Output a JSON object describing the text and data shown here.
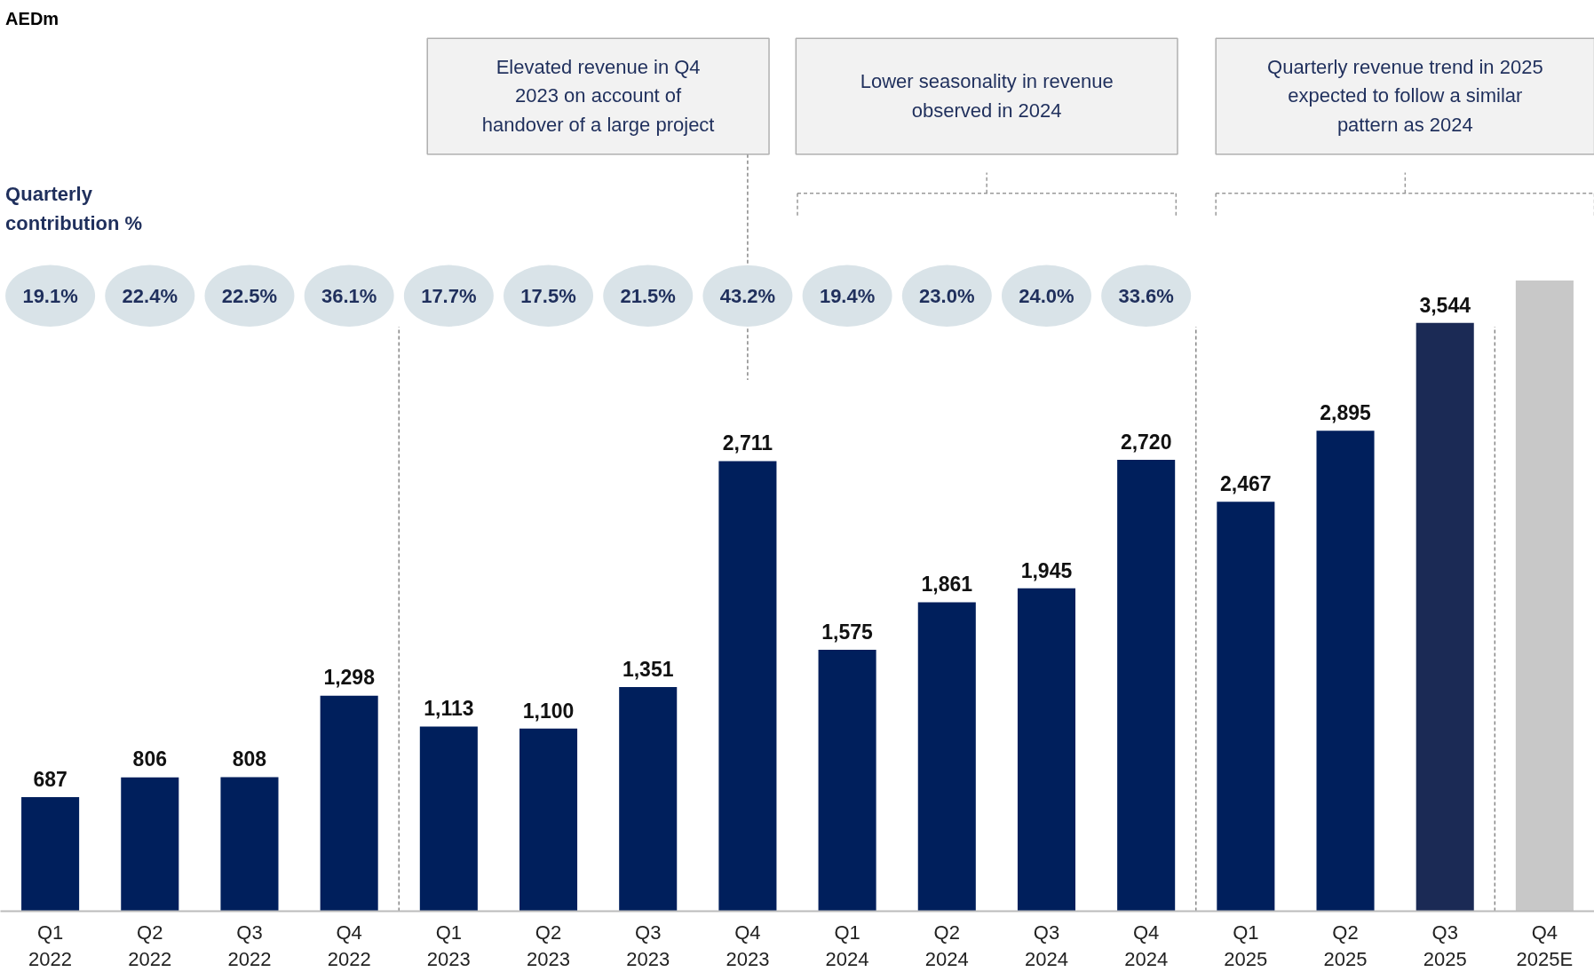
{
  "chart_data": {
    "type": "bar",
    "categories": [
      "Q1\n2022",
      "Q2\n2022",
      "Q3\n2022",
      "Q4\n2022",
      "Q1\n2023",
      "Q2\n2023",
      "Q3\n2023",
      "Q4\n2023",
      "Q1\n2024",
      "Q2\n2024",
      "Q3\n2024",
      "Q4\n2024",
      "Q1\n2025",
      "Q2\n2025",
      "Q3\n2025",
      "Q4\n2025E"
    ],
    "values": [
      687,
      806,
      808,
      1298,
      1113,
      1100,
      1351,
      2711,
      1575,
      1861,
      1945,
      2720,
      2467,
      2895,
      3544,
      3800
    ],
    "colors": [
      "#001f5c",
      "#001f5c",
      "#001f5c",
      "#001f5c",
      "#001f5c",
      "#001f5c",
      "#001f5c",
      "#001f5c",
      "#001f5c",
      "#001f5c",
      "#001f5c",
      "#001f5c",
      "#001f5c",
      "#001f5c",
      "#1b2a55",
      "#c8c8c8"
    ],
    "value_labels": [
      "687",
      "806",
      "808",
      "1,298",
      "1,113",
      "1,100",
      "1,351",
      "2,711",
      "1,575",
      "1,861",
      "1,945",
      "2,720",
      "2,467",
      "2,895",
      "3,544",
      null
    ],
    "grid": false,
    "annotations": [
      "AEDm",
      "Quarterly\ncontribution %",
      "19.1%",
      "22.4%",
      "22.5%",
      "36.1%",
      "17.7%",
      "17.5%",
      "21.5%",
      "43.2%",
      "19.4%",
      "23.0%",
      "24.0%",
      "33.6%",
      "Elevated revenue in Q4\n2023 on account of\nhandover of a large project",
      "Lower seasonality in revenue\nobserved in 2024",
      "Quarterly revenue trend in 2025\nexpected to follow a similar\npattern as 2024"
    ]
  }
}
